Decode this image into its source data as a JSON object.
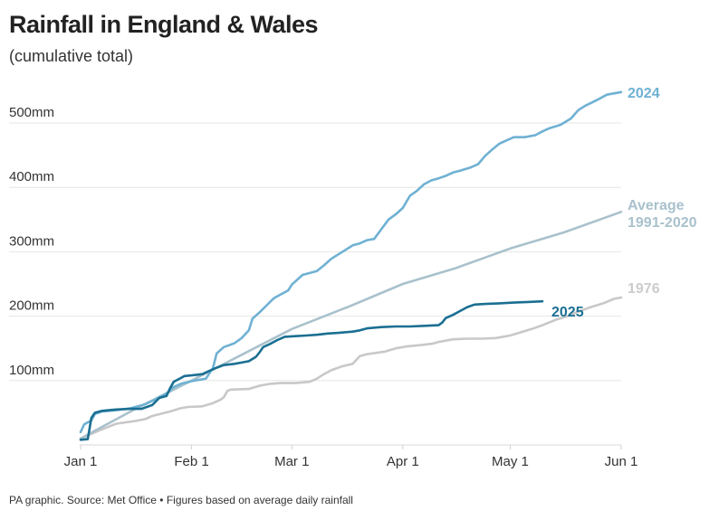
{
  "chart_data": {
    "type": "line",
    "title": "Rainfall in England & Wales",
    "subtitle": "(cumulative total)",
    "xlabel": "",
    "ylabel": "",
    "x_range_days": [
      0,
      151
    ],
    "ylim": [
      0,
      550
    ],
    "y_ticks": [
      {
        "value": 100,
        "label": "100mm"
      },
      {
        "value": 200,
        "label": "200mm"
      },
      {
        "value": 300,
        "label": "300mm"
      },
      {
        "value": 400,
        "label": "400mm"
      },
      {
        "value": 500,
        "label": "500mm"
      }
    ],
    "x_ticks": [
      {
        "day": 0,
        "label": "Jan 1"
      },
      {
        "day": 31,
        "label": "Feb 1"
      },
      {
        "day": 59,
        "label": "Mar 1"
      },
      {
        "day": 90,
        "label": "Apr 1"
      },
      {
        "day": 120,
        "label": "May 1"
      },
      {
        "day": 151,
        "label": "Jun 1"
      }
    ],
    "grid": true,
    "series": [
      {
        "name": "1976",
        "color": "#c8c8c8",
        "points": [
          [
            0,
            10
          ],
          [
            5,
            22
          ],
          [
            10,
            33
          ],
          [
            15,
            37
          ],
          [
            18,
            40
          ],
          [
            20,
            45
          ],
          [
            25,
            52
          ],
          [
            28,
            57
          ],
          [
            30,
            59
          ],
          [
            34,
            60
          ],
          [
            37,
            65
          ],
          [
            39,
            70
          ],
          [
            40,
            74
          ],
          [
            41,
            84
          ],
          [
            42,
            86
          ],
          [
            47,
            87
          ],
          [
            50,
            92
          ],
          [
            53,
            95
          ],
          [
            56,
            96
          ],
          [
            60,
            96
          ],
          [
            64,
            98
          ],
          [
            66,
            103
          ],
          [
            68,
            110
          ],
          [
            70,
            116
          ],
          [
            73,
            122
          ],
          [
            76,
            126
          ],
          [
            78,
            138
          ],
          [
            80,
            141
          ],
          [
            85,
            145
          ],
          [
            88,
            150
          ],
          [
            91,
            153
          ],
          [
            95,
            155
          ],
          [
            98,
            157
          ],
          [
            100,
            160
          ],
          [
            104,
            164
          ],
          [
            108,
            165
          ],
          [
            112,
            165
          ],
          [
            116,
            166
          ],
          [
            120,
            170
          ],
          [
            123,
            175
          ],
          [
            126,
            180
          ],
          [
            129,
            186
          ],
          [
            133,
            195
          ],
          [
            136,
            200
          ],
          [
            139,
            207
          ],
          [
            142,
            213
          ],
          [
            146,
            220
          ],
          [
            149,
            227
          ],
          [
            151,
            229
          ]
        ]
      },
      {
        "name": "Average 1991-2020",
        "color": "#a9c1cc",
        "points": [
          [
            0,
            10
          ],
          [
            15,
            55
          ],
          [
            31,
            100
          ],
          [
            45,
            140
          ],
          [
            59,
            180
          ],
          [
            75,
            215
          ],
          [
            90,
            250
          ],
          [
            105,
            275
          ],
          [
            120,
            305
          ],
          [
            135,
            330
          ],
          [
            151,
            362
          ]
        ]
      },
      {
        "name": "2024",
        "color": "#6fb1d3",
        "points": [
          [
            0,
            20
          ],
          [
            1,
            32
          ],
          [
            3,
            38
          ],
          [
            4,
            48
          ],
          [
            6,
            52
          ],
          [
            10,
            54
          ],
          [
            14,
            57
          ],
          [
            18,
            63
          ],
          [
            21,
            71
          ],
          [
            24,
            80
          ],
          [
            26,
            90
          ],
          [
            28,
            95
          ],
          [
            31,
            99
          ],
          [
            35,
            103
          ],
          [
            37,
            120
          ],
          [
            38,
            142
          ],
          [
            40,
            152
          ],
          [
            43,
            158
          ],
          [
            45,
            166
          ],
          [
            47,
            178
          ],
          [
            48,
            196
          ],
          [
            50,
            206
          ],
          [
            52,
            217
          ],
          [
            54,
            228
          ],
          [
            56,
            234
          ],
          [
            58,
            240
          ],
          [
            59,
            249
          ],
          [
            62,
            264
          ],
          [
            64,
            267
          ],
          [
            66,
            270
          ],
          [
            68,
            279
          ],
          [
            70,
            289
          ],
          [
            72,
            296
          ],
          [
            74,
            303
          ],
          [
            76,
            310
          ],
          [
            78,
            313
          ],
          [
            80,
            318
          ],
          [
            82,
            320
          ],
          [
            84,
            335
          ],
          [
            86,
            350
          ],
          [
            88,
            358
          ],
          [
            90,
            368
          ],
          [
            92,
            387
          ],
          [
            94,
            395
          ],
          [
            96,
            405
          ],
          [
            98,
            411
          ],
          [
            100,
            414
          ],
          [
            102,
            418
          ],
          [
            104,
            423
          ],
          [
            106,
            426
          ],
          [
            109,
            431
          ],
          [
            111,
            436
          ],
          [
            113,
            449
          ],
          [
            115,
            459
          ],
          [
            117,
            468
          ],
          [
            119,
            473
          ],
          [
            121,
            478
          ],
          [
            124,
            478
          ],
          [
            127,
            481
          ],
          [
            129,
            487
          ],
          [
            131,
            492
          ],
          [
            134,
            497
          ],
          [
            137,
            507
          ],
          [
            139,
            520
          ],
          [
            141,
            527
          ],
          [
            144,
            535
          ],
          [
            147,
            544
          ],
          [
            151,
            548
          ]
        ]
      },
      {
        "name": "2025",
        "color": "#1b6f92",
        "points": [
          [
            0,
            8
          ],
          [
            2,
            9
          ],
          [
            3,
            42
          ],
          [
            4,
            50
          ],
          [
            6,
            53
          ],
          [
            10,
            55
          ],
          [
            14,
            56
          ],
          [
            17,
            56
          ],
          [
            20,
            62
          ],
          [
            22,
            73
          ],
          [
            24,
            76
          ],
          [
            25,
            88
          ],
          [
            26,
            98
          ],
          [
            28,
            104
          ],
          [
            29,
            107
          ],
          [
            31,
            108
          ],
          [
            34,
            110
          ],
          [
            36,
            115
          ],
          [
            38,
            120
          ],
          [
            40,
            124
          ],
          [
            43,
            126
          ],
          [
            45,
            128
          ],
          [
            47,
            130
          ],
          [
            49,
            137
          ],
          [
            50,
            144
          ],
          [
            51,
            152
          ],
          [
            53,
            157
          ],
          [
            55,
            163
          ],
          [
            57,
            168
          ],
          [
            60,
            169
          ],
          [
            63,
            170
          ],
          [
            66,
            171
          ],
          [
            69,
            173
          ],
          [
            72,
            174
          ],
          [
            76,
            176
          ],
          [
            78,
            178
          ],
          [
            80,
            181
          ],
          [
            84,
            183
          ],
          [
            88,
            184
          ],
          [
            92,
            184
          ],
          [
            96,
            185
          ],
          [
            100,
            186
          ],
          [
            101,
            190
          ],
          [
            102,
            197
          ],
          [
            104,
            202
          ],
          [
            106,
            208
          ],
          [
            108,
            214
          ],
          [
            110,
            218
          ],
          [
            113,
            219
          ],
          [
            117,
            220
          ],
          [
            121,
            221
          ],
          [
            125,
            222
          ],
          [
            129,
            223
          ]
        ]
      }
    ],
    "series_labels": [
      {
        "series": "2024",
        "lines": [
          "2024"
        ],
        "color": "#6fb1d3"
      },
      {
        "series": "Average 1991-2020",
        "lines": [
          "Average",
          "1991-2020"
        ],
        "color": "#a9c1cc"
      },
      {
        "series": "1976",
        "lines": [
          "1976"
        ],
        "color": "#cccccc"
      },
      {
        "series": "2025",
        "lines": [
          "2025"
        ],
        "color": "#1b6f92"
      }
    ]
  },
  "footer": "PA graphic. Source: Met Office • Figures based on average daily rainfall"
}
